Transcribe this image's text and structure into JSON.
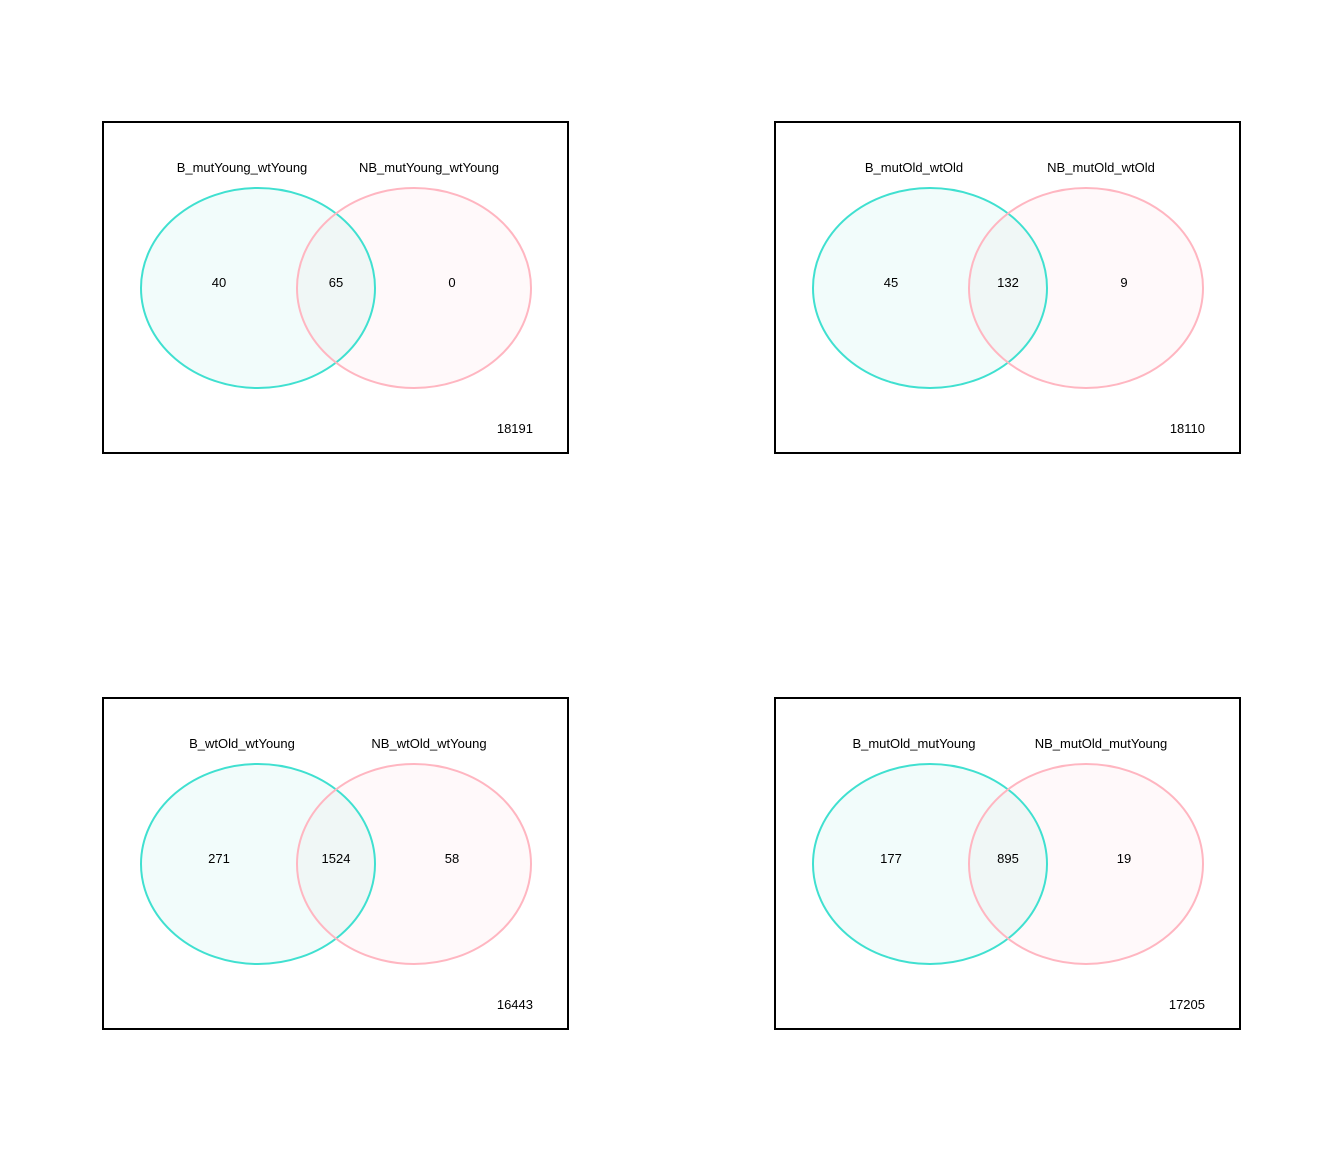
{
  "colors": {
    "set_a_stroke": "#40E0D0",
    "set_a_fill": "#F2FCFB",
    "set_b_stroke": "#FFB6C1",
    "set_b_fill": "#FFF9FA",
    "overlap_fill": "#F0F7F6",
    "frame": "#000000"
  },
  "panels": [
    {
      "set_a_label": "B_mutYoung_wtYoung",
      "set_b_label": "NB_mutYoung_wtYoung",
      "only_a": "40",
      "both": "65",
      "only_b": "0",
      "neither": "18191"
    },
    {
      "set_a_label": "B_mutOld_wtOld",
      "set_b_label": "NB_mutOld_wtOld",
      "only_a": "45",
      "both": "132",
      "only_b": "9",
      "neither": "18110"
    },
    {
      "set_a_label": "B_wtOld_wtYoung",
      "set_b_label": "NB_wtOld_wtYoung",
      "only_a": "271",
      "both": "1524",
      "only_b": "58",
      "neither": "16443"
    },
    {
      "set_a_label": "B_mutOld_mutYoung",
      "set_b_label": "NB_mutOld_mutYoung",
      "only_a": "177",
      "both": "895",
      "only_b": "19",
      "neither": "17205"
    }
  ]
}
